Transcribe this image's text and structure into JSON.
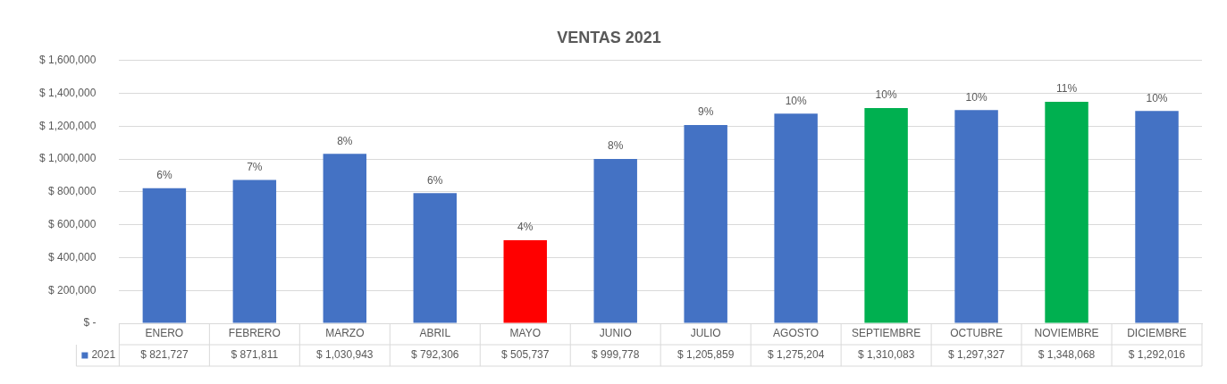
{
  "chart_data": {
    "type": "bar",
    "title": "VENTAS 2021",
    "categories": [
      "ENERO",
      "FEBRERO",
      "MARZO",
      "ABRIL",
      "MAYO",
      "JUNIO",
      "JULIO",
      "AGOSTO",
      "SEPTIEMBRE",
      "OCTUBRE",
      "NOVIEMBRE",
      "DICIEMBRE"
    ],
    "series": [
      {
        "name": "2021",
        "color": "#4472c4",
        "colors": [
          "#4472c4",
          "#4472c4",
          "#4472c4",
          "#4472c4",
          "#ff0000",
          "#4472c4",
          "#4472c4",
          "#4472c4",
          "#00b050",
          "#4472c4",
          "#00b050",
          "#4472c4"
        ],
        "values": [
          821727,
          871811,
          1030943,
          792306,
          505737,
          999778,
          1205859,
          1275204,
          1310083,
          1297327,
          1348068,
          1292016
        ],
        "value_labels": [
          "$ 821,727",
          "$ 871,811",
          "$ 1,030,943",
          "$ 792,306",
          "$ 505,737",
          "$ 999,778",
          "$ 1,205,859",
          "$ 1,275,204",
          "$ 1,310,083",
          "$ 1,297,327",
          "$ 1,348,068",
          "$ 1,292,016"
        ]
      }
    ],
    "annotations": [
      {
        "text": "6%",
        "x": "ENERO",
        "y": 821727
      },
      {
        "text": "7%",
        "x": "FEBRERO",
        "y": 871811
      },
      {
        "text": "8%",
        "x": "MARZO",
        "y": 1030943
      },
      {
        "text": "6%",
        "x": "ABRIL",
        "y": 792306
      },
      {
        "text": "4%",
        "x": "MAYO",
        "y": 505737
      },
      {
        "text": "8%",
        "x": "JUNIO",
        "y": 999778
      },
      {
        "text": "9%",
        "x": "JULIO",
        "y": 1205859
      },
      {
        "text": "10%",
        "x": "AGOSTO",
        "y": 1275204
      },
      {
        "text": "10%",
        "x": "SEPTIEMBRE",
        "y": 1310083
      },
      {
        "text": "10%",
        "x": "OCTUBRE",
        "y": 1297327
      },
      {
        "text": "11%",
        "x": "NOVIEMBRE",
        "y": 1348068
      },
      {
        "text": "10%",
        "x": "DICIEMBRE",
        "y": 1292016
      }
    ],
    "ylim": [
      0,
      1600000
    ],
    "yticks": [
      {
        "value": 0,
        "label": "$ -"
      },
      {
        "value": 200000,
        "label": "$ 200,000"
      },
      {
        "value": 400000,
        "label": "$ 400,000"
      },
      {
        "value": 600000,
        "label": "$ 600,000"
      },
      {
        "value": 800000,
        "label": "$ 800,000"
      },
      {
        "value": 1000000,
        "label": "$ 1,000,000"
      },
      {
        "value": 1200000,
        "label": "$ 1,200,000"
      },
      {
        "value": 1400000,
        "label": "$ 1,400,000"
      },
      {
        "value": 1600000,
        "label": "$ 1,600,000"
      }
    ],
    "grid": "y"
  }
}
